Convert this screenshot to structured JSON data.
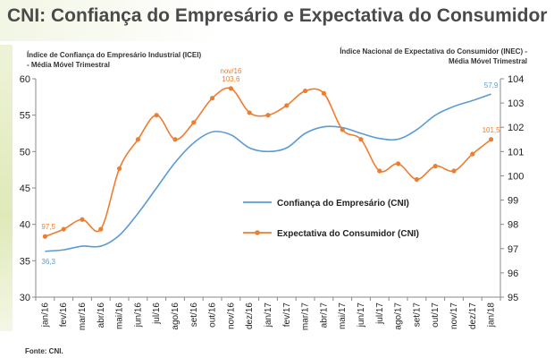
{
  "title": "CNI: Confiança do Empresário e Expectativa do Consumidor",
  "subtitle_left": "Índice de Confiança do Empresário Industrial (ICEI)\n- Média Móvel Trimestral",
  "subtitle_right": "Índice Nacional de Expectativa do Consumidor (INEC) -\nMédia Móvel Trimestral",
  "source": "Fonte: CNI.",
  "colors": {
    "icei": "#5b9bd5",
    "inec": "#ed7d31",
    "axis": "#888888",
    "title": "#4a4a4a"
  },
  "chart_data": {
    "type": "line",
    "categories": [
      "jan/16",
      "fev/16",
      "mar/16",
      "abr/16",
      "mai/16",
      "jun/16",
      "jul/16",
      "ago/16",
      "set/16",
      "out/16",
      "nov/16",
      "dez/16",
      "jan/17",
      "fev/17",
      "mar/17",
      "abr/17",
      "mai/17",
      "jun/17",
      "jul/17",
      "ago/17",
      "set/17",
      "out/17",
      "nov/17",
      "dez/17",
      "jan/18"
    ],
    "y_left": {
      "ylim": [
        30,
        60
      ],
      "ticks": [
        30,
        35,
        40,
        45,
        50,
        55,
        60
      ]
    },
    "y_right": {
      "ylim": [
        95,
        104
      ],
      "ticks": [
        95,
        96,
        97,
        98,
        99,
        100,
        101,
        102,
        103,
        104
      ]
    },
    "series": [
      {
        "name": "Confiança do Empresário (CNI)",
        "axis": "left",
        "markers": false,
        "values": [
          36.3,
          36.5,
          37.0,
          37.0,
          38.5,
          41.5,
          45.0,
          48.5,
          51.2,
          52.7,
          52.3,
          50.5,
          50.0,
          50.5,
          52.5,
          53.4,
          53.3,
          52.5,
          51.8,
          51.7,
          53.0,
          55.0,
          56.2,
          57.0,
          57.9
        ],
        "labels": [
          {
            "index": 0,
            "text": "36,3"
          },
          {
            "index": 24,
            "text": "57,9"
          }
        ]
      },
      {
        "name": "Expectativa do Consumidor (CNI)",
        "axis": "right",
        "markers": true,
        "values": [
          97.5,
          97.8,
          98.2,
          97.8,
          100.3,
          101.5,
          102.5,
          101.5,
          102.2,
          103.2,
          103.6,
          102.6,
          102.5,
          102.9,
          103.5,
          103.4,
          101.9,
          101.5,
          100.2,
          100.5,
          99.85,
          100.4,
          100.2,
          100.9,
          101.5
        ],
        "labels": [
          {
            "index": 0,
            "text": "97,5"
          },
          {
            "index": 10,
            "text": "nov/16\n103,6"
          },
          {
            "index": 24,
            "text": "101,5"
          }
        ]
      }
    ],
    "legend": "center",
    "grid": false
  }
}
